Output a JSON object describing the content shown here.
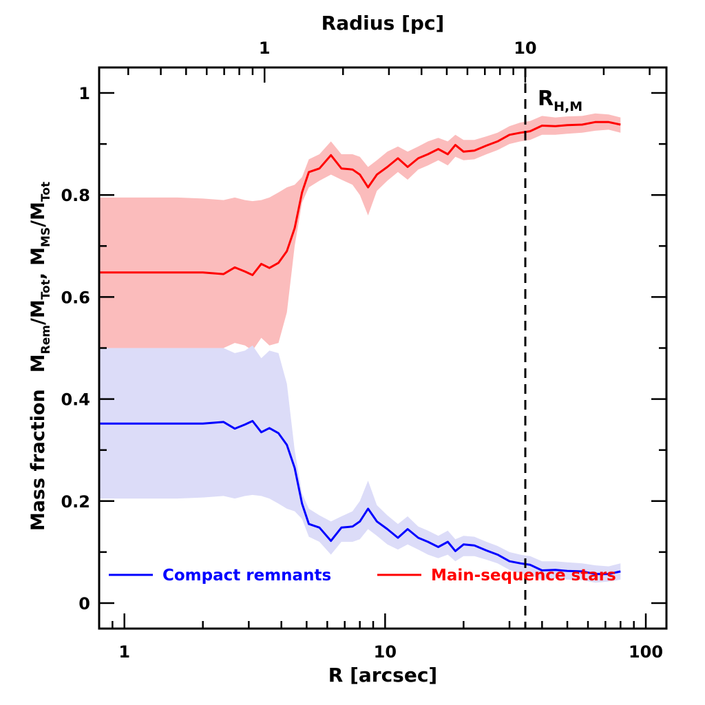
{
  "chart_data": {
    "type": "line",
    "xlabel": "R [arcsec]",
    "x2label": "Radius [pc]",
    "ylabel_parts": {
      "prefix": "Mass fraction",
      "rem_main": "M",
      "rem_sub": "Rem",
      "rem_div": "/M",
      "rem_tot_sub": "Tot",
      "sep": ",",
      "ms_main": "M",
      "ms_sub": "MS",
      "ms_div": "/M",
      "ms_tot_sub": "Tot"
    },
    "xscale": "log",
    "xlim": [
      0.8,
      120
    ],
    "ylim": [
      -0.05,
      1.05
    ],
    "x_ticks": [
      {
        "value": 1,
        "label": "1"
      },
      {
        "value": 10,
        "label": "10"
      },
      {
        "value": 100,
        "label": "100"
      }
    ],
    "y_ticks": [
      {
        "value": 0,
        "label": "0"
      },
      {
        "value": 0.2,
        "label": "0.2"
      },
      {
        "value": 0.4,
        "label": "0.4"
      },
      {
        "value": 0.6,
        "label": "0.6"
      },
      {
        "value": 0.8,
        "label": "0.8"
      },
      {
        "value": 1,
        "label": "1"
      }
    ],
    "top_axis_scale_pc_per_arcsec": 0.29,
    "top_ticks": [
      {
        "value": 1,
        "label": "1"
      },
      {
        "value": 10,
        "label": "10"
      }
    ],
    "vline": {
      "x": 34.5,
      "label_main": "R",
      "label_sub": "H,M",
      "style": "dashed"
    },
    "series": [
      {
        "name": "Main-sequence stars",
        "color": "#ff0000",
        "band_color": "#fbbcbc",
        "x": [
          0.8,
          1.0,
          1.3,
          1.6,
          2.0,
          2.4,
          2.65,
          2.9,
          3.1,
          3.35,
          3.6,
          3.9,
          4.2,
          4.5,
          4.8,
          5.1,
          5.6,
          6.2,
          6.8,
          7.5,
          8.0,
          8.6,
          9.3,
          10.2,
          11.2,
          12.2,
          13.4,
          14.6,
          16.0,
          17.4,
          18.6,
          20.0,
          22.0,
          24.5,
          27.0,
          30.0,
          33.0,
          36.0,
          40.0,
          45.0,
          50.0,
          57.0,
          64.0,
          72.0,
          80.0
        ],
        "values": [
          0.648,
          0.648,
          0.648,
          0.648,
          0.648,
          0.645,
          0.658,
          0.65,
          0.643,
          0.665,
          0.657,
          0.667,
          0.69,
          0.735,
          0.805,
          0.845,
          0.852,
          0.878,
          0.852,
          0.85,
          0.84,
          0.815,
          0.84,
          0.855,
          0.872,
          0.855,
          0.872,
          0.88,
          0.89,
          0.88,
          0.898,
          0.885,
          0.887,
          0.897,
          0.905,
          0.918,
          0.922,
          0.925,
          0.936,
          0.935,
          0.937,
          0.938,
          0.943,
          0.943,
          0.938
        ],
        "upper": [
          0.795,
          0.795,
          0.795,
          0.795,
          0.793,
          0.79,
          0.795,
          0.79,
          0.788,
          0.79,
          0.795,
          0.805,
          0.815,
          0.82,
          0.835,
          0.87,
          0.88,
          0.905,
          0.88,
          0.88,
          0.875,
          0.855,
          0.868,
          0.885,
          0.895,
          0.885,
          0.895,
          0.905,
          0.912,
          0.905,
          0.918,
          0.908,
          0.908,
          0.915,
          0.922,
          0.935,
          0.942,
          0.945,
          0.955,
          0.952,
          0.954,
          0.955,
          0.96,
          0.958,
          0.952
        ],
        "lower": [
          0.5,
          0.5,
          0.5,
          0.5,
          0.5,
          0.5,
          0.51,
          0.505,
          0.495,
          0.52,
          0.505,
          0.51,
          0.57,
          0.7,
          0.785,
          0.815,
          0.828,
          0.84,
          0.83,
          0.82,
          0.8,
          0.76,
          0.808,
          0.828,
          0.845,
          0.83,
          0.85,
          0.858,
          0.868,
          0.858,
          0.875,
          0.868,
          0.87,
          0.88,
          0.888,
          0.9,
          0.905,
          0.908,
          0.918,
          0.918,
          0.92,
          0.922,
          0.926,
          0.928,
          0.922
        ]
      },
      {
        "name": "Compact remnants",
        "color": "#0000ff",
        "band_color": "#dcdcf8",
        "x": [
          0.8,
          1.0,
          1.3,
          1.6,
          2.0,
          2.4,
          2.65,
          2.9,
          3.1,
          3.35,
          3.6,
          3.9,
          4.2,
          4.5,
          4.8,
          5.1,
          5.6,
          6.2,
          6.8,
          7.5,
          8.0,
          8.6,
          9.3,
          10.2,
          11.2,
          12.2,
          13.4,
          14.6,
          16.0,
          17.4,
          18.6,
          20.0,
          22.0,
          24.5,
          27.0,
          30.0,
          33.0,
          36.0,
          40.0,
          45.0,
          50.0,
          57.0,
          64.0,
          72.0,
          80.0
        ],
        "values": [
          0.352,
          0.352,
          0.352,
          0.352,
          0.352,
          0.355,
          0.342,
          0.35,
          0.357,
          0.335,
          0.343,
          0.333,
          0.31,
          0.265,
          0.195,
          0.155,
          0.148,
          0.122,
          0.148,
          0.15,
          0.16,
          0.185,
          0.16,
          0.145,
          0.128,
          0.145,
          0.128,
          0.12,
          0.11,
          0.12,
          0.102,
          0.115,
          0.113,
          0.103,
          0.095,
          0.082,
          0.078,
          0.075,
          0.064,
          0.065,
          0.063,
          0.062,
          0.057,
          0.057,
          0.062
        ],
        "upper": [
          0.5,
          0.5,
          0.5,
          0.5,
          0.5,
          0.5,
          0.49,
          0.495,
          0.505,
          0.48,
          0.495,
          0.49,
          0.43,
          0.3,
          0.215,
          0.185,
          0.172,
          0.16,
          0.17,
          0.18,
          0.2,
          0.24,
          0.192,
          0.172,
          0.155,
          0.17,
          0.15,
          0.142,
          0.132,
          0.142,
          0.125,
          0.132,
          0.13,
          0.12,
          0.112,
          0.1,
          0.095,
          0.092,
          0.082,
          0.082,
          0.08,
          0.078,
          0.074,
          0.072,
          0.078
        ],
        "lower": [
          0.205,
          0.205,
          0.205,
          0.205,
          0.207,
          0.21,
          0.205,
          0.21,
          0.212,
          0.21,
          0.205,
          0.195,
          0.185,
          0.18,
          0.165,
          0.13,
          0.12,
          0.095,
          0.12,
          0.12,
          0.125,
          0.145,
          0.132,
          0.115,
          0.105,
          0.115,
          0.105,
          0.095,
          0.088,
          0.095,
          0.082,
          0.092,
          0.092,
          0.085,
          0.078,
          0.065,
          0.058,
          0.055,
          0.045,
          0.048,
          0.046,
          0.045,
          0.04,
          0.042,
          0.046
        ]
      }
    ],
    "legend": [
      {
        "name": "Compact remnants",
        "color": "#0000ff",
        "placement": "bottom-left"
      },
      {
        "name": "Main-sequence stars",
        "color": "#ff0000",
        "placement": "bottom-right"
      }
    ]
  }
}
